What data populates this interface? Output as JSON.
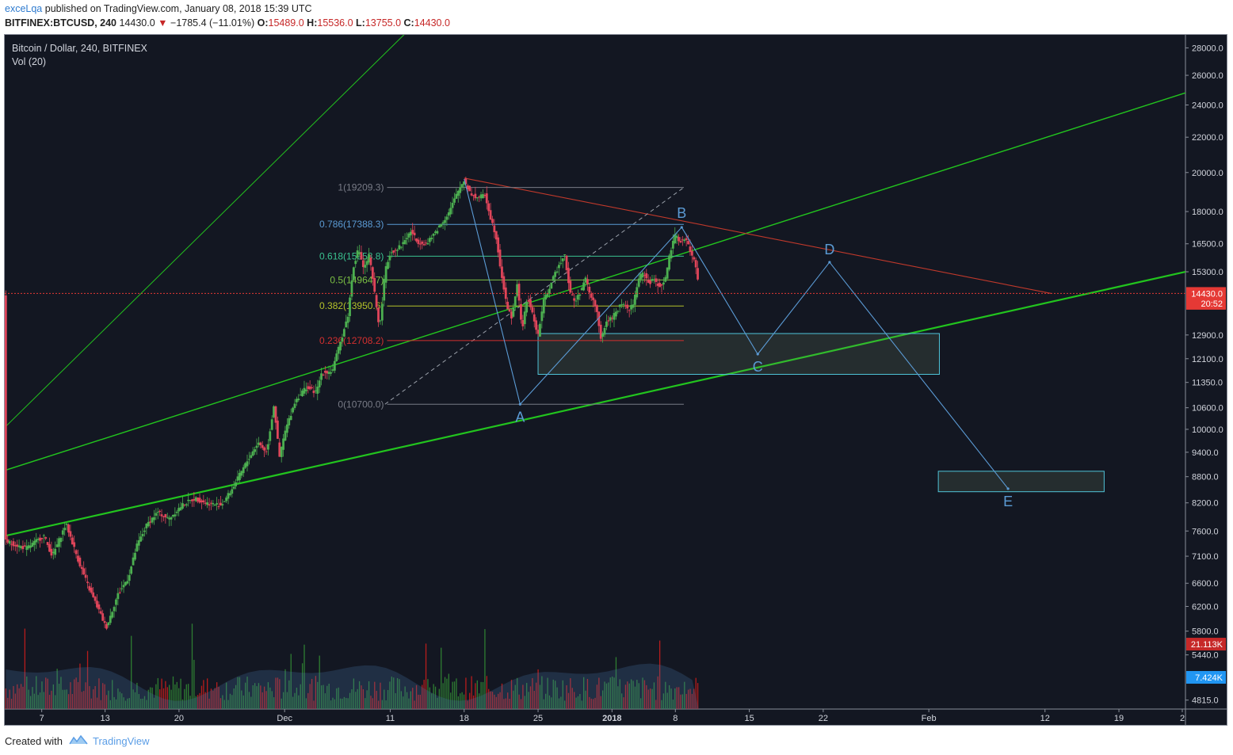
{
  "header": {
    "author": "exceLqa",
    "published_text": "published on TradingView.com, January 08, 2018 15:39 UTC",
    "symbol": "BITFINEX:BTCUSD, 240",
    "last": "14430.0",
    "change_arrow": "▼",
    "change": "−1785.4 (−11.01%)",
    "o_label": "O:",
    "o_value": "15489.0",
    "h_label": "H:",
    "h_value": "15536.0",
    "l_label": "L:",
    "l_value": "13755.0",
    "c_label": "C:",
    "c_value": "14430.0"
  },
  "overlay": {
    "title": "Bitcoin / Dollar, 240, BITFINEX",
    "volume_label": "Vol (20)"
  },
  "footer": {
    "created_with": "Created with",
    "brand": "TradingView",
    "logo_icon": "tradingview-cloud-icon"
  },
  "colors": {
    "background": "#131722",
    "up": "#4caf50",
    "down": "#e0455a",
    "trend": "#22c41e",
    "elliott": "#5b9bd5",
    "zone_border": "#4fc3d8",
    "price_marker": "#e53935",
    "vol_up": "#2e7d32",
    "vol_down": "#b71c1c"
  },
  "chart_data": {
    "type": "candlestick",
    "title": "Bitcoin / Dollar, 240, BITFINEX",
    "x_axis_labels": [
      {
        "day": 7,
        "label": "7"
      },
      {
        "day": 13,
        "label": "13"
      },
      {
        "day": 20,
        "label": "20"
      },
      {
        "day": 30,
        "label": "Dec"
      },
      {
        "day": 40,
        "label": "11"
      },
      {
        "day": 47,
        "label": "18"
      },
      {
        "day": 54,
        "label": "25"
      },
      {
        "day": 61,
        "label": "2018"
      },
      {
        "day": 67,
        "label": "8"
      },
      {
        "day": 74,
        "label": "15"
      },
      {
        "day": 81,
        "label": "22"
      },
      {
        "day": 91,
        "label": "Feb"
      },
      {
        "day": 102,
        "label": "12"
      },
      {
        "day": 109,
        "label": "19"
      },
      {
        "day": 115,
        "label": "2"
      }
    ],
    "y_axis_labels": [
      28000,
      26000,
      24000,
      22000,
      20000,
      18000,
      16500,
      15300,
      12900,
      12100,
      11350,
      10600,
      10000,
      9400,
      8800,
      8200,
      7600,
      7100,
      6600,
      6200,
      5800,
      5440,
      4815
    ],
    "y_axis_label_text": [
      "28000.0",
      "26000.0",
      "24000.0",
      "22000.0",
      "20000.0",
      "18000.0",
      "16500.0",
      "15300.0",
      "12900.0",
      "12100.0",
      "11350.0",
      "10600.0",
      "10000.0",
      "9400.0",
      "8800.0",
      "8200.0",
      "7600.0",
      "7100.0",
      "6600.0",
      "6200.0",
      "5800.0",
      "5440.0",
      "4815.0"
    ],
    "y_range": [
      4700,
      29000
    ],
    "y_scale": "log",
    "x_range_days": [
      3.5,
      115.3
    ],
    "price_path": [
      [
        3.5,
        7400
      ],
      [
        5.5,
        7250
      ],
      [
        7.2,
        7500
      ],
      [
        8.0,
        7100
      ],
      [
        9.3,
        7750
      ],
      [
        10.5,
        7000
      ],
      [
        11.5,
        6500
      ],
      [
        12.5,
        6100
      ],
      [
        13.1,
        5850
      ],
      [
        14.2,
        6400
      ],
      [
        15.2,
        6700
      ],
      [
        16.0,
        7300
      ],
      [
        17.0,
        7750
      ],
      [
        18.0,
        8000
      ],
      [
        19.0,
        7850
      ],
      [
        20.3,
        8150
      ],
      [
        21.5,
        8300
      ],
      [
        22.5,
        8200
      ],
      [
        24.0,
        8150
      ],
      [
        25.0,
        8500
      ],
      [
        26.5,
        9200
      ],
      [
        27.5,
        9650
      ],
      [
        28.3,
        9400
      ],
      [
        29.0,
        10700
      ],
      [
        29.5,
        9250
      ],
      [
        30.0,
        9900
      ],
      [
        31.0,
        10800
      ],
      [
        32.0,
        11200
      ],
      [
        33.0,
        11050
      ],
      [
        33.5,
        11650
      ],
      [
        34.5,
        11700
      ],
      [
        35.0,
        12300
      ],
      [
        36.0,
        13600
      ],
      [
        36.5,
        15500
      ],
      [
        37.0,
        16300
      ],
      [
        37.5,
        15400
      ],
      [
        38.0,
        16000
      ],
      [
        38.5,
        14500
      ],
      [
        39.0,
        13100
      ],
      [
        39.5,
        15300
      ],
      [
        40.0,
        16100
      ],
      [
        41.0,
        16400
      ],
      [
        42.0,
        17100
      ],
      [
        42.5,
        16600
      ],
      [
        43.5,
        16500
      ],
      [
        44.5,
        17200
      ],
      [
        45.5,
        17900
      ],
      [
        46.5,
        19100
      ],
      [
        47.0,
        19600
      ],
      [
        47.5,
        19000
      ],
      [
        48.0,
        18700
      ],
      [
        49.0,
        18800
      ],
      [
        49.5,
        17700
      ],
      [
        50.0,
        16900
      ],
      [
        50.5,
        15300
      ],
      [
        51.0,
        14000
      ],
      [
        51.5,
        13500
      ],
      [
        52.0,
        14800
      ],
      [
        52.5,
        13100
      ],
      [
        53.0,
        14300
      ],
      [
        53.5,
        13600
      ],
      [
        54.0,
        12900
      ],
      [
        54.5,
        14100
      ],
      [
        55.0,
        14600
      ],
      [
        56.0,
        15600
      ],
      [
        56.5,
        16100
      ],
      [
        57.0,
        14500
      ],
      [
        57.5,
        14100
      ],
      [
        58.0,
        14500
      ],
      [
        58.5,
        15000
      ],
      [
        59.0,
        14300
      ],
      [
        59.5,
        13900
      ],
      [
        60.0,
        12700
      ],
      [
        60.5,
        13400
      ],
      [
        61.0,
        13500
      ],
      [
        61.5,
        13800
      ],
      [
        62.0,
        14100
      ],
      [
        62.5,
        13800
      ],
      [
        63.0,
        14000
      ],
      [
        63.5,
        15000
      ],
      [
        64.0,
        15300
      ],
      [
        64.5,
        14800
      ],
      [
        65.0,
        15000
      ],
      [
        65.5,
        14700
      ],
      [
        66.0,
        14900
      ],
      [
        66.5,
        16100
      ],
      [
        67.0,
        16900
      ],
      [
        67.5,
        16600
      ],
      [
        68.0,
        16700
      ],
      [
        68.4,
        16200
      ],
      [
        68.9,
        15600
      ],
      [
        69.3,
        14430
      ]
    ],
    "volume_scale_max": 21113,
    "fibonacci": [
      {
        "level": "1",
        "price": 19209.3,
        "label": "1(19209.3)",
        "color": "#787b86"
      },
      {
        "level": "0.786",
        "price": 17388.3,
        "label": "0.786(17388.3)",
        "color": "#5b9bd5"
      },
      {
        "level": "0.618",
        "price": 15958.8,
        "label": "0.618(15958.8)",
        "color": "#3ac28f"
      },
      {
        "level": "0.5",
        "price": 14964.7,
        "label": "0.5(14964.7)",
        "color": "#7bc043"
      },
      {
        "level": "0.382",
        "price": 13950.6,
        "label": "0.382(13950.6)",
        "color": "#b4c229"
      },
      {
        "level": "0.236",
        "price": 12708.2,
        "label": "0.236(12708.2)",
        "color": "#d32f2f"
      },
      {
        "level": "0",
        "price": 10700.0,
        "label": "0(10700.0)",
        "color": "#787b86"
      }
    ],
    "wave_points": [
      {
        "label": "A",
        "day": 52.3,
        "price": 10700
      },
      {
        "label": "B",
        "day": 67.6,
        "price": 17250
      },
      {
        "label": "C",
        "day": 74.8,
        "price": 12250
      },
      {
        "label": "D",
        "day": 81.6,
        "price": 15700
      },
      {
        "label": "E",
        "day": 98.5,
        "price": 8520
      }
    ],
    "zones": [
      {
        "day_from": 54.0,
        "day_to": 92.0,
        "price_from": 11600,
        "price_to": 12950
      },
      {
        "day_from": 91.9,
        "day_to": 107.6,
        "price_from": 8450,
        "price_to": 8930
      }
    ],
    "current_price": 14430.0,
    "price_tags": [
      {
        "label": "14430.0",
        "price": 14430,
        "color": "#e53935"
      },
      {
        "label": "20:52",
        "price": 14050,
        "color": "#e53935"
      },
      {
        "label": "21.113K",
        "price": 5600,
        "color": "#c62828"
      },
      {
        "label": "7.424K",
        "price": 5120,
        "color": "#2196f3"
      }
    ]
  }
}
